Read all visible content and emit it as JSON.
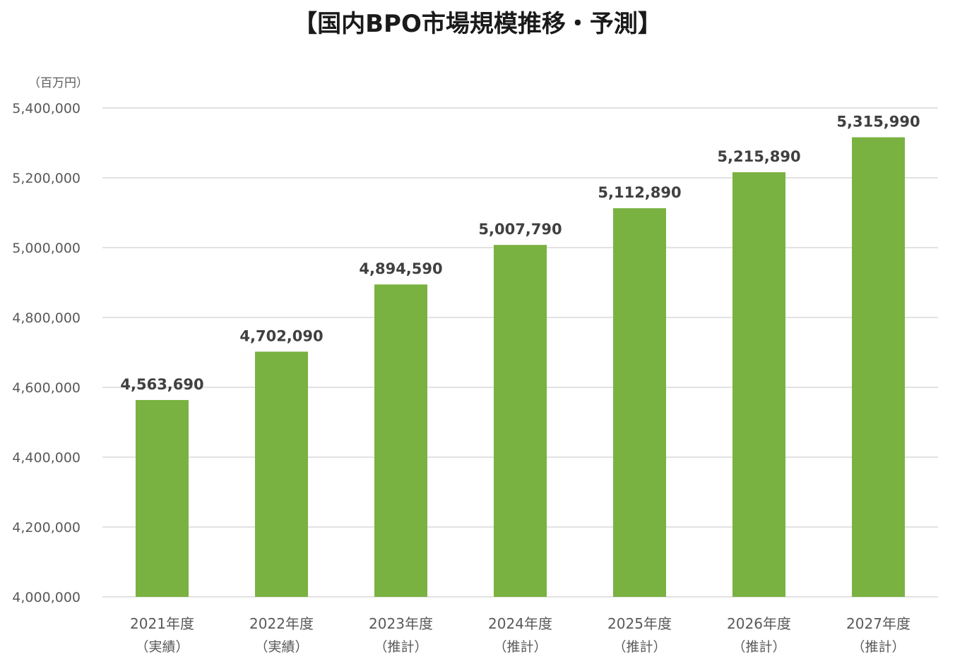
{
  "chart_data": {
    "type": "bar",
    "title": "【国内BPO市場規模推移・予測】",
    "unit_label": "（百万円）",
    "categories": [
      "2021年度",
      "2022年度",
      "2023年度",
      "2024年度",
      "2025年度",
      "2026年度",
      "2027年度"
    ],
    "category_notes": [
      "（実績）",
      "（実績）",
      "（推計）",
      "（推計）",
      "（推計）",
      "（推計）",
      "（推計）"
    ],
    "values": [
      4563690,
      4702090,
      4894590,
      5007790,
      5112890,
      5215890,
      5315990
    ],
    "value_labels": [
      "4,563,690",
      "4,702,090",
      "4,894,590",
      "5,007,790",
      "5,112,890",
      "5,215,890",
      "5,315,990"
    ],
    "ylim": [
      4000000,
      5400000
    ],
    "yticks": [
      4000000,
      4200000,
      4400000,
      4600000,
      4800000,
      5000000,
      5200000,
      5400000
    ],
    "ytick_labels": [
      "4,000,000",
      "4,200,000",
      "4,400,000",
      "4,600,000",
      "4,800,000",
      "5,000,000",
      "5,200,000",
      "5,400,000"
    ],
    "grid": true,
    "legend": "none",
    "bar_color": "#7ab241",
    "xlabel": "",
    "ylabel": ""
  }
}
